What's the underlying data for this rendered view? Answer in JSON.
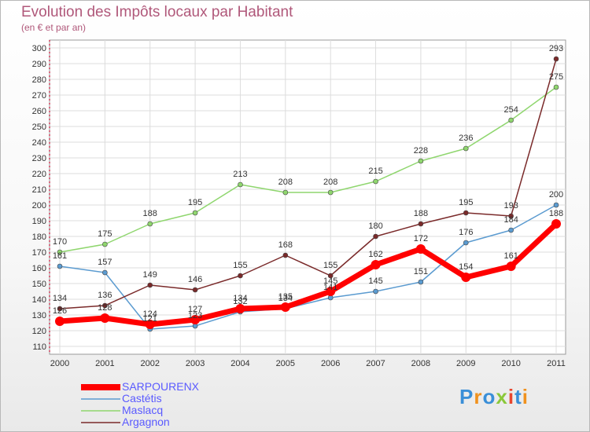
{
  "header": {
    "title": "Evolution des Impôts locaux par Habitant",
    "subtitle": "(en € et par an)"
  },
  "logo": {
    "text": "Proxiti",
    "colors": [
      "#3a8fd8",
      "#f0921e",
      "#3a8fd8",
      "#8ac83a",
      "#e8462e",
      "#3a8fd8",
      "#f0921e"
    ]
  },
  "chart_data": {
    "type": "line",
    "title": "Evolution des Impôts locaux par Habitant",
    "subtitle": "(en € et par an)",
    "x": [
      "2000",
      "2001",
      "2002",
      "2003",
      "2004",
      "2005",
      "2006",
      "2007",
      "2008",
      "2009",
      "2010",
      "2011"
    ],
    "ylim": [
      110,
      300
    ],
    "yticks": [
      110,
      120,
      130,
      140,
      150,
      160,
      170,
      180,
      190,
      200,
      210,
      220,
      230,
      240,
      250,
      260,
      270,
      280,
      290,
      300
    ],
    "grid": true,
    "legend_position": "bottom-left",
    "series": [
      {
        "name": "SARPOURENX",
        "color": "#ff0000",
        "values": [
          126,
          128,
          124,
          127,
          134,
          135,
          145,
          162,
          172,
          154,
          161,
          188
        ]
      },
      {
        "name": "Castétis",
        "color": "#5b9bd0",
        "values": [
          161,
          157,
          121,
          123,
          132,
          134,
          141,
          145,
          151,
          176,
          184,
          200
        ]
      },
      {
        "name": "Maslacq",
        "color": "#8fd66e",
        "values": [
          170,
          175,
          188,
          195,
          213,
          208,
          208,
          215,
          228,
          236,
          254,
          275
        ]
      },
      {
        "name": "Argagnon",
        "color": "#7a2a2a",
        "values": [
          134,
          136,
          149,
          146,
          155,
          168,
          155,
          180,
          188,
          195,
          193,
          293
        ]
      }
    ]
  }
}
